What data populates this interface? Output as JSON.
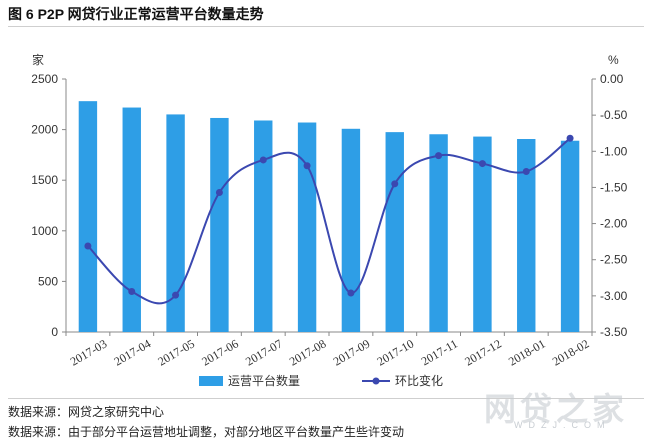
{
  "figure": {
    "title": "图 6   P2P 网贷行业正常运营平台数量走势"
  },
  "chart_data": {
    "type": "bar",
    "categories": [
      "2017-03",
      "2017-04",
      "2017-05",
      "2017-06",
      "2017-07",
      "2017-08",
      "2017-09",
      "2017-10",
      "2017-11",
      "2017-12",
      "2018-01",
      "2018-02"
    ],
    "series": [
      {
        "name": "运营平台数量",
        "type": "bar",
        "axis": "left",
        "values": [
          2281,
          2218,
          2150,
          2115,
          2090,
          2070,
          2008,
          1975,
          1954,
          1931,
          1907,
          1890
        ]
      },
      {
        "name": "环比变化",
        "type": "line",
        "axis": "right",
        "values": [
          -2.31,
          -2.94,
          -2.99,
          -1.57,
          -1.12,
          -1.2,
          -2.96,
          -1.45,
          -1.06,
          -1.17,
          -1.28,
          -0.82
        ]
      }
    ],
    "y_left": {
      "label": "家",
      "min": 0,
      "max": 2500,
      "ticks": [
        "0",
        "500",
        "1000",
        "1500",
        "2000",
        "2500"
      ]
    },
    "y_right": {
      "label": "%",
      "min": -3.5,
      "max": 0,
      "ticks": [
        "0.00",
        "-0.50",
        "-1.00",
        "-1.50",
        "-2.00",
        "-2.50",
        "-3.00",
        "-3.50"
      ]
    },
    "legend_position": "bottom",
    "grid": false
  },
  "colors": {
    "bar": "#2e9ee6",
    "line": "#3b48b0",
    "axis": "#888888"
  },
  "sources": {
    "line1": "数据来源：网贷之家研究中心",
    "line2": "数据来源：由于部分平台运营地址调整，对部分地区平台数量产生些许变动"
  },
  "watermark": {
    "main": "网贷之家",
    "sub": "WDZJ.COM"
  }
}
